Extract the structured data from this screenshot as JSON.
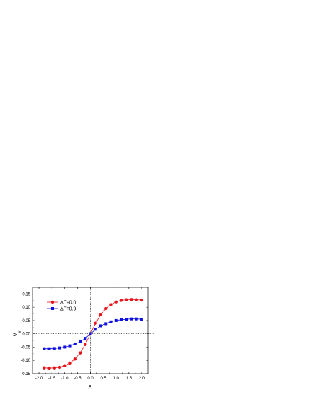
{
  "chart_data": {
    "type": "line",
    "xlabel": "Δ",
    "ylabel_main": "v",
    "ylabel_sub": "x",
    "xlim": [
      -2.25,
      2.25
    ],
    "ylim": [
      -0.15,
      0.175
    ],
    "x_ticks": [
      -2.0,
      -1.5,
      -1.0,
      -0.5,
      0.0,
      0.5,
      1.0,
      1.5,
      2.0
    ],
    "x_tick_labels": [
      "-2.0",
      "-1.5",
      "-1.0",
      "-0.5",
      "0.0",
      "0.5",
      "1.0",
      "1.5",
      "2.0"
    ],
    "y_ticks": [
      -0.15,
      -0.1,
      -0.05,
      0.0,
      0.05,
      0.1,
      0.15
    ],
    "y_tick_labels": [
      "-0.15",
      "-0.10",
      "-0.05",
      "0.00",
      "0.05",
      "0.10",
      "0.15"
    ],
    "reference_lines": {
      "x": 0,
      "y": 0,
      "style": "dotted"
    },
    "legend_placement": "top-left",
    "x": [
      -1.8,
      -1.6,
      -1.4,
      -1.2,
      -1.0,
      -0.8,
      -0.6,
      -0.4,
      -0.2,
      0.0,
      0.2,
      0.4,
      0.6,
      0.8,
      1.0,
      1.2,
      1.4,
      1.6,
      1.8,
      2.0
    ],
    "series": [
      {
        "name": "ΔΓ=0.0",
        "color": "#e8141b",
        "marker": "circle",
        "values": [
          -0.128,
          -0.129,
          -0.128,
          -0.126,
          -0.12,
          -0.11,
          -0.095,
          -0.072,
          -0.04,
          0.0,
          0.04,
          0.072,
          0.095,
          0.11,
          0.12,
          0.126,
          0.128,
          0.129,
          0.128,
          0.127
        ]
      },
      {
        "name": "ΔΓ=0.9",
        "color": "#1010e0",
        "marker": "square",
        "values": [
          -0.056,
          -0.056,
          -0.055,
          -0.053,
          -0.05,
          -0.045,
          -0.038,
          -0.03,
          -0.017,
          0.0,
          0.017,
          0.03,
          0.038,
          0.045,
          0.05,
          0.053,
          0.055,
          0.056,
          0.056,
          0.055
        ]
      }
    ]
  }
}
